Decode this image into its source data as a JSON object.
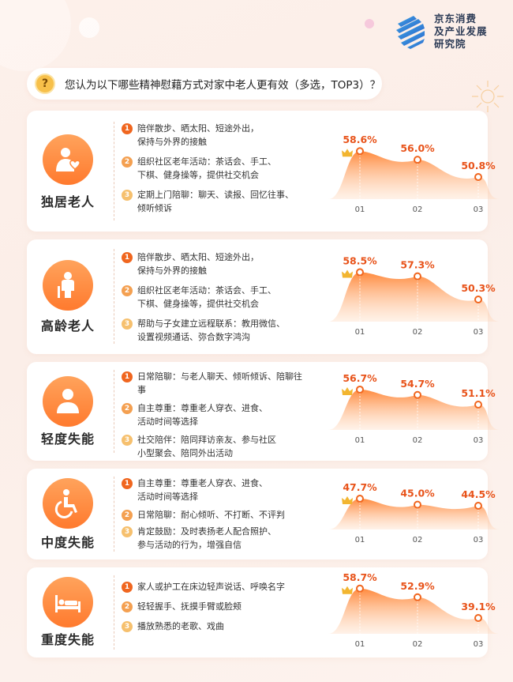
{
  "logo": {
    "line1": "京东消费",
    "line2": "及产业发展",
    "line3": "研究院"
  },
  "question": {
    "icon": "?",
    "text": "您认为以下哪些精神慰藉方式对家中老人更有效（多选，TOP3）？"
  },
  "colors": {
    "accent": "#f0661f",
    "area_top": "#ff8a3d",
    "label": "#e8531a"
  },
  "groups": [
    {
      "label": "独居老人",
      "icon": "person-heart-icon",
      "items": [
        {
          "num": "1",
          "lines": [
            "陪伴散步、晒太阳、短途外出，",
            "保持与外界的接触"
          ]
        },
        {
          "num": "2",
          "lines": [
            "组织社区老年活动：茶话会、手工、",
            "下棋、健身操等，提供社交机会"
          ]
        },
        {
          "num": "3",
          "lines": [
            "定期上门陪聊：聊天、读报、回忆往事、",
            "倾听倾诉"
          ]
        }
      ],
      "value_labels": [
        "58.6%",
        "56.0%",
        "50.8%"
      ]
    },
    {
      "label": "高龄老人",
      "icon": "seated-elder-icon",
      "items": [
        {
          "num": "1",
          "lines": [
            "陪伴散步、晒太阳、短途外出，",
            "保持与外界的接触"
          ]
        },
        {
          "num": "2",
          "lines": [
            "组织社区老年活动：茶话会、手工、",
            "下棋、健身操等，提供社交机会"
          ]
        },
        {
          "num": "3",
          "lines": [
            "帮助与子女建立远程联系：教用微信、",
            "设置视频通话、弥合数字鸿沟"
          ]
        }
      ],
      "value_labels": [
        "58.5%",
        "57.3%",
        "50.3%"
      ]
    },
    {
      "label": "轻度失能",
      "icon": "person-bust-icon",
      "items": [
        {
          "num": "1",
          "lines": [
            "日常陪聊：与老人聊天、倾听倾诉、陪聊往事"
          ]
        },
        {
          "num": "2",
          "lines": [
            "自主尊重：尊重老人穿衣、进食、",
            "活动时间等选择"
          ]
        },
        {
          "num": "3",
          "lines": [
            "社交陪伴：陪同拜访亲友、参与社区",
            "小型聚会、陪同外出活动"
          ]
        }
      ],
      "value_labels": [
        "56.7%",
        "54.7%",
        "51.1%"
      ]
    },
    {
      "label": "中度失能",
      "icon": "wheelchair-icon",
      "items": [
        {
          "num": "1",
          "lines": [
            "自主尊重：尊重老人穿衣、进食、",
            "活动时间等选择"
          ]
        },
        {
          "num": "2",
          "lines": [
            "日常陪聊：耐心倾听、不打断、不评判"
          ]
        },
        {
          "num": "3",
          "lines": [
            "肯定鼓励：及时表扬老人配合照护、",
            "参与活动的行为，增强自信"
          ]
        }
      ],
      "value_labels": [
        "47.7%",
        "45.0%",
        "44.5%"
      ]
    },
    {
      "label": "重度失能",
      "icon": "bed-icon",
      "items": [
        {
          "num": "1",
          "lines": [
            "家人或护工在床边轻声说话、呼唤名字"
          ]
        },
        {
          "num": "2",
          "lines": [
            "轻轻握手、抚摸手臂或脸颊"
          ]
        },
        {
          "num": "3",
          "lines": [
            "播放熟悉的老歌、戏曲"
          ]
        }
      ],
      "value_labels": [
        "58.7%",
        "52.9%",
        "39.1%"
      ]
    }
  ],
  "chart_data": [
    {
      "type": "area",
      "categories": [
        "01",
        "02",
        "03"
      ],
      "values": [
        58.6,
        56.0,
        50.8
      ],
      "top_marker": "crown-icon"
    },
    {
      "type": "area",
      "categories": [
        "01",
        "02",
        "03"
      ],
      "values": [
        58.5,
        57.3,
        50.3
      ],
      "top_marker": "crown-icon"
    },
    {
      "type": "area",
      "categories": [
        "01",
        "02",
        "03"
      ],
      "values": [
        56.7,
        54.7,
        51.1
      ],
      "top_marker": "crown-icon"
    },
    {
      "type": "area",
      "categories": [
        "01",
        "02",
        "03"
      ],
      "values": [
        47.7,
        45.0,
        44.5
      ],
      "top_marker": "crown-icon"
    },
    {
      "type": "area",
      "categories": [
        "01",
        "02",
        "03"
      ],
      "values": [
        58.7,
        52.9,
        39.1
      ],
      "top_marker": "crown-icon"
    }
  ]
}
